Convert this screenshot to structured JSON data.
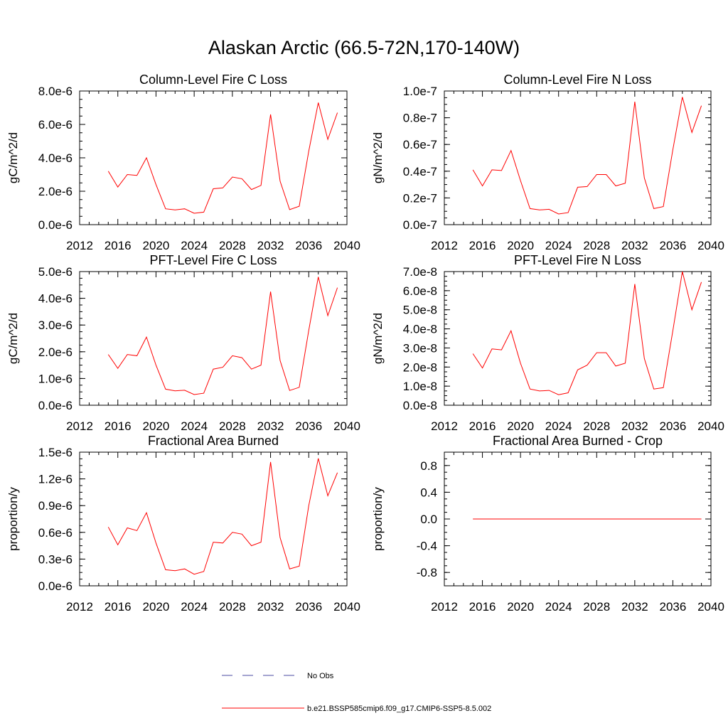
{
  "figure": {
    "title": "Alaskan Arctic (66.5-72N,170-140W)"
  },
  "colors": {
    "series": "#ff0000",
    "obs": "#4a4aa0",
    "axis": "#000000"
  },
  "legend": {
    "obs_label": "No Obs",
    "model_label": "b.e21.BSSP585cmip6.f09_g17.CMIP6-SSP5-8.5.002"
  },
  "chart_data": [
    {
      "type": "line",
      "title": "Column-Level Fire C Loss",
      "ylabel": "gC/m^2/d",
      "xlim": [
        2012,
        2040
      ],
      "ylim": [
        0,
        8e-06
      ],
      "xticks": [
        2012,
        2016,
        2020,
        2024,
        2028,
        2032,
        2036,
        2040
      ],
      "yticks": [
        0,
        2e-06,
        4e-06,
        6e-06,
        8e-06
      ],
      "ytick_labels": [
        "0.0e-6",
        "2.0e-6",
        "4.0e-6",
        "6.0e-6",
        "8.0e-6"
      ],
      "x": [
        2015,
        2016,
        2017,
        2018,
        2019,
        2020,
        2021,
        2022,
        2023,
        2024,
        2025,
        2026,
        2027,
        2028,
        2029,
        2030,
        2031,
        2032,
        2033,
        2034,
        2035,
        2036,
        2037,
        2038,
        2039
      ],
      "series": [
        {
          "name": "b.e21.BSSP585cmip6.f09_g17.CMIP6-SSP5-8.5.002",
          "values": [
            3.2e-06,
            2.25e-06,
            3e-06,
            2.95e-06,
            4e-06,
            2.4e-06,
            9.5e-07,
            8.8e-07,
            9.5e-07,
            6.8e-07,
            7.5e-07,
            2.15e-06,
            2.2e-06,
            2.85e-06,
            2.75e-06,
            2.1e-06,
            2.35e-06,
            6.6e-06,
            2.6e-06,
            9e-07,
            1.1e-06,
            4.4e-06,
            7.3e-06,
            5.1e-06,
            6.7e-06
          ]
        }
      ]
    },
    {
      "type": "line",
      "title": "Column-Level Fire N Loss",
      "ylabel": "gN/m^2/d",
      "xlim": [
        2012,
        2040
      ],
      "ylim": [
        0,
        1e-07
      ],
      "xticks": [
        2012,
        2016,
        2020,
        2024,
        2028,
        2032,
        2036,
        2040
      ],
      "yticks": [
        0,
        2e-08,
        4e-08,
        6e-08,
        8e-08,
        1e-07
      ],
      "ytick_labels": [
        "0.0e-7",
        "0.2e-7",
        "0.4e-7",
        "0.6e-7",
        "0.8e-7",
        "1.0e-7"
      ],
      "x": [
        2015,
        2016,
        2017,
        2018,
        2019,
        2020,
        2021,
        2022,
        2023,
        2024,
        2025,
        2026,
        2027,
        2028,
        2029,
        2030,
        2031,
        2032,
        2033,
        2034,
        2035,
        2036,
        2037,
        2038,
        2039
      ],
      "series": [
        {
          "name": "b.e21.BSSP585cmip6.f09_g17.CMIP6-SSP5-8.5.002",
          "values": [
            4.1e-08,
            2.9e-08,
            4.1e-08,
            4.05e-08,
            5.55e-08,
            3.3e-08,
            1.2e-08,
            1.1e-08,
            1.15e-08,
            8e-09,
            9e-09,
            2.8e-08,
            2.85e-08,
            3.75e-08,
            3.75e-08,
            2.9e-08,
            3.1e-08,
            9.2e-08,
            3.5e-08,
            1.2e-08,
            1.35e-08,
            5.6e-08,
            9.55e-08,
            6.9e-08,
            8.9e-08
          ]
        }
      ]
    },
    {
      "type": "line",
      "title": "PFT-Level Fire C Loss",
      "ylabel": "gC/m^2/d",
      "xlim": [
        2012,
        2040
      ],
      "ylim": [
        0,
        5e-06
      ],
      "xticks": [
        2012,
        2016,
        2020,
        2024,
        2028,
        2032,
        2036,
        2040
      ],
      "yticks": [
        0,
        1e-06,
        2e-06,
        3e-06,
        4e-06,
        5e-06
      ],
      "ytick_labels": [
        "0.0e-6",
        "1.0e-6",
        "2.0e-6",
        "3.0e-6",
        "4.0e-6",
        "5.0e-6"
      ],
      "x": [
        2015,
        2016,
        2017,
        2018,
        2019,
        2020,
        2021,
        2022,
        2023,
        2024,
        2025,
        2026,
        2027,
        2028,
        2029,
        2030,
        2031,
        2032,
        2033,
        2034,
        2035,
        2036,
        2037,
        2038,
        2039
      ],
      "series": [
        {
          "name": "b.e21.BSSP585cmip6.f09_g17.CMIP6-SSP5-8.5.002",
          "values": [
            1.9e-06,
            1.38e-06,
            1.9e-06,
            1.85e-06,
            2.55e-06,
            1.5e-06,
            6e-07,
            5.4e-07,
            5.6e-07,
            4e-07,
            4.5e-07,
            1.35e-06,
            1.42e-06,
            1.85e-06,
            1.78e-06,
            1.35e-06,
            1.5e-06,
            4.25e-06,
            1.67e-06,
            5.5e-07,
            6.7e-07,
            2.8e-06,
            4.8e-06,
            3.35e-06,
            4.4e-06
          ]
        }
      ]
    },
    {
      "type": "line",
      "title": "PFT-Level Fire N Loss",
      "ylabel": "gN/m^2/d",
      "xlim": [
        2012,
        2040
      ],
      "ylim": [
        0,
        7e-08
      ],
      "xticks": [
        2012,
        2016,
        2020,
        2024,
        2028,
        2032,
        2036,
        2040
      ],
      "yticks": [
        0,
        1e-08,
        2e-08,
        3e-08,
        4e-08,
        5e-08,
        6e-08,
        7e-08
      ],
      "ytick_labels": [
        "0.0e-8",
        "1.0e-8",
        "2.0e-8",
        "3.0e-8",
        "4.0e-8",
        "5.0e-8",
        "6.0e-8",
        "7.0e-8"
      ],
      "x": [
        2015,
        2016,
        2017,
        2018,
        2019,
        2020,
        2021,
        2022,
        2023,
        2024,
        2025,
        2026,
        2027,
        2028,
        2029,
        2030,
        2031,
        2032,
        2033,
        2034,
        2035,
        2036,
        2037,
        2038,
        2039
      ],
      "series": [
        {
          "name": "b.e21.BSSP585cmip6.f09_g17.CMIP6-SSP5-8.5.002",
          "values": [
            2.7e-08,
            1.95e-08,
            2.95e-08,
            2.9e-08,
            3.9e-08,
            2.2e-08,
            8.5e-09,
            7.5e-09,
            7.8e-09,
            5.5e-09,
            6.5e-09,
            1.85e-08,
            2.1e-08,
            2.75e-08,
            2.75e-08,
            2.05e-08,
            2.2e-08,
            6.35e-08,
            2.45e-08,
            8.5e-09,
            9.2e-09,
            3.9e-08,
            7e-08,
            5e-08,
            6.45e-08
          ]
        }
      ]
    },
    {
      "type": "line",
      "title": "Fractional Area Burned",
      "ylabel": "proportion/y",
      "xlim": [
        2012,
        2040
      ],
      "ylim": [
        0,
        1.5e-06
      ],
      "xticks": [
        2012,
        2016,
        2020,
        2024,
        2028,
        2032,
        2036,
        2040
      ],
      "yticks": [
        0,
        3e-07,
        6e-07,
        9e-07,
        1.2e-06,
        1.5e-06
      ],
      "ytick_labels": [
        "0.0e-6",
        "0.3e-6",
        "0.6e-6",
        "0.9e-6",
        "1.2e-6",
        "1.5e-6"
      ],
      "x": [
        2015,
        2016,
        2017,
        2018,
        2019,
        2020,
        2021,
        2022,
        2023,
        2024,
        2025,
        2026,
        2027,
        2028,
        2029,
        2030,
        2031,
        2032,
        2033,
        2034,
        2035,
        2036,
        2037,
        2038,
        2039
      ],
      "series": [
        {
          "name": "b.e21.BSSP585cmip6.f09_g17.CMIP6-SSP5-8.5.002",
          "values": [
            6.6e-07,
            4.6e-07,
            6.5e-07,
            6.2e-07,
            8.2e-07,
            4.8e-07,
            1.8e-07,
            1.7e-07,
            1.9e-07,
            1.3e-07,
            1.6e-07,
            4.9e-07,
            4.8e-07,
            6e-07,
            5.8e-07,
            4.5e-07,
            4.9e-07,
            1.39e-06,
            5.4e-07,
            1.9e-07,
            2.2e-07,
            9e-07,
            1.43e-06,
            1.01e-06,
            1.27e-06
          ]
        }
      ]
    },
    {
      "type": "line",
      "title": "Fractional Area Burned - Crop",
      "ylabel": "proportion/y",
      "xlim": [
        2012,
        2040
      ],
      "ylim": [
        -1.0,
        1.0
      ],
      "xticks": [
        2012,
        2016,
        2020,
        2024,
        2028,
        2032,
        2036,
        2040
      ],
      "yticks": [
        -0.8,
        -0.4,
        0.0,
        0.4,
        0.8
      ],
      "ytick_labels": [
        "-0.8",
        "-0.4",
        "0.0",
        "0.4",
        "0.8"
      ],
      "x": [
        2015,
        2016,
        2017,
        2018,
        2019,
        2020,
        2021,
        2022,
        2023,
        2024,
        2025,
        2026,
        2027,
        2028,
        2029,
        2030,
        2031,
        2032,
        2033,
        2034,
        2035,
        2036,
        2037,
        2038,
        2039
      ],
      "series": [
        {
          "name": "b.e21.BSSP585cmip6.f09_g17.CMIP6-SSP5-8.5.002",
          "values": [
            0,
            0,
            0,
            0,
            0,
            0,
            0,
            0,
            0,
            0,
            0,
            0,
            0,
            0,
            0,
            0,
            0,
            0,
            0,
            0,
            0,
            0,
            0,
            0,
            0
          ]
        }
      ]
    }
  ]
}
